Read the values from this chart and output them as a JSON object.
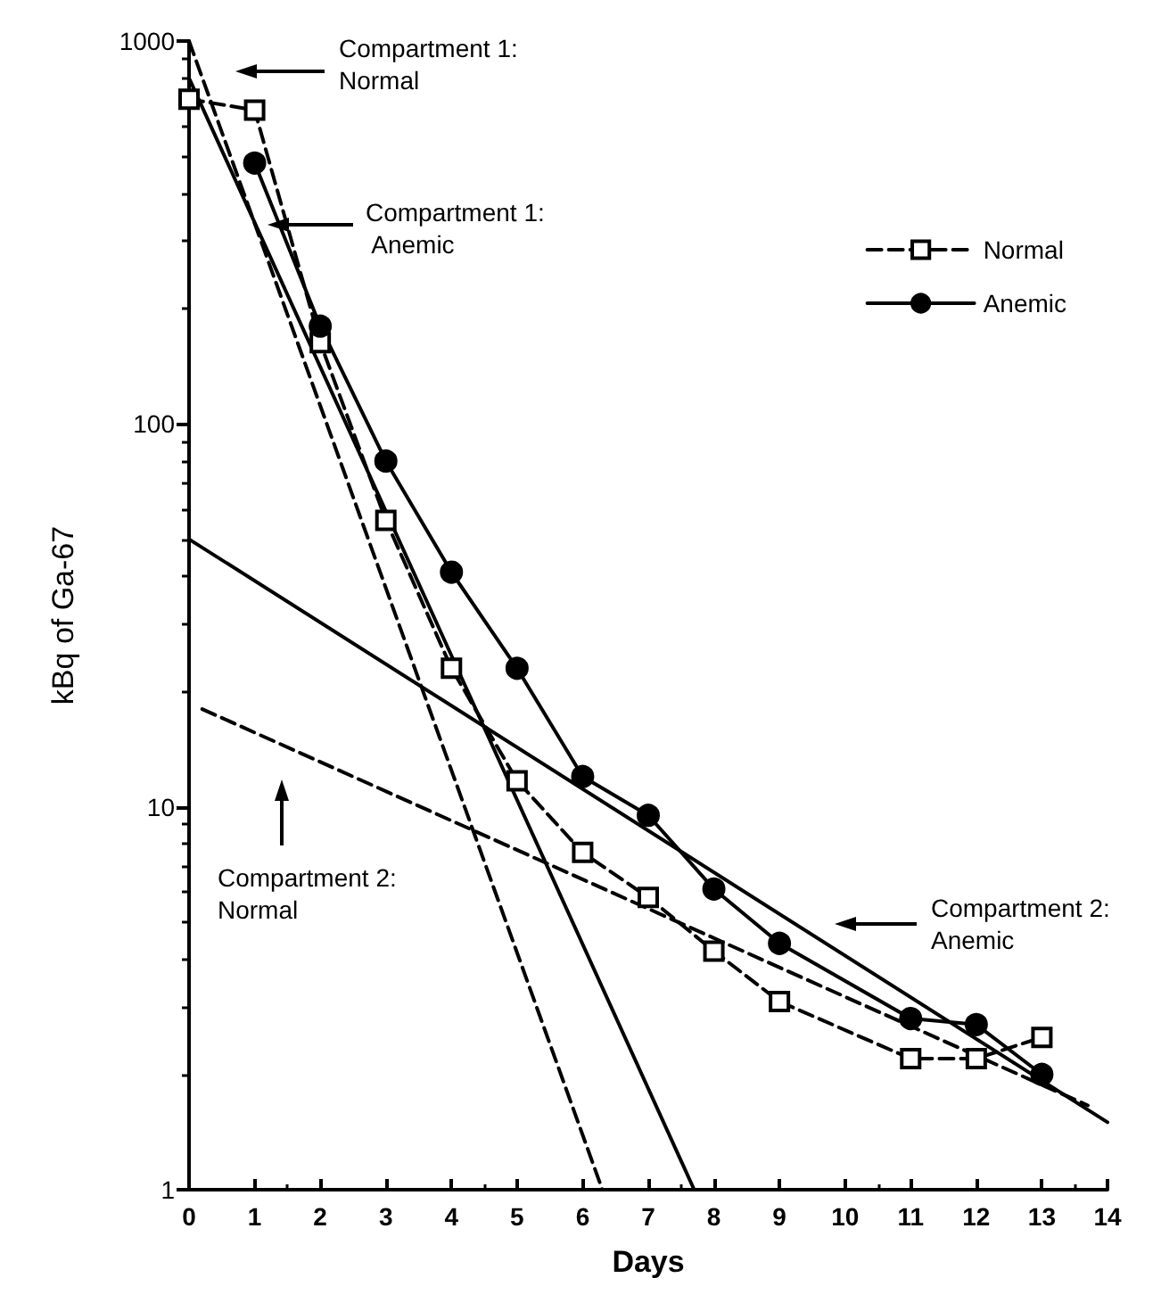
{
  "chart_data": {
    "type": "line",
    "xlabel": "Days",
    "ylabel": "kBq of Ga-67",
    "x": [
      0,
      1,
      2,
      3,
      4,
      5,
      6,
      7,
      8,
      9,
      11,
      12,
      13
    ],
    "series": [
      {
        "name": "Normal",
        "color": "#000000",
        "marker": "square",
        "line_style": "dashed",
        "values": [
          705,
          660,
          163,
          56,
          23,
          11.7,
          7.6,
          5.8,
          4.2,
          3.1,
          2.2,
          2.2,
          2.5
        ]
      },
      {
        "name": "Anemic",
        "color": "#000000",
        "marker": "circle",
        "line_style": "solid",
        "values": [
          null,
          480,
          180,
          80,
          41,
          23,
          12,
          9.5,
          6.1,
          4.4,
          2.8,
          2.7,
          2.0
        ]
      },
      {
        "type": "line",
        "color": "#000000",
        "marker": "none",
        "line_style": "dashed",
        "x": [
          0,
          6.3
        ],
        "values": [
          1000,
          1
        ]
      },
      {
        "type": "line",
        "color": "#000000",
        "marker": "none",
        "line_style": "solid",
        "x": [
          0,
          7.7
        ],
        "values": [
          800,
          1
        ]
      },
      {
        "type": "line",
        "color": "#000000",
        "marker": "none",
        "line_style": "dashed",
        "x": [
          0.2,
          13.7
        ],
        "values": [
          18,
          1.66
        ]
      },
      {
        "type": "line",
        "color": "#000000",
        "marker": "none",
        "line_style": "solid",
        "x": [
          0,
          14
        ],
        "values": [
          50,
          1.5
        ]
      }
    ],
    "xlim": [
      0,
      14
    ],
    "xticks": [
      0,
      1,
      2,
      3,
      4,
      5,
      6,
      7,
      8,
      9,
      10,
      11,
      12,
      13,
      14
    ],
    "ylim": [
      1,
      1000
    ],
    "yticks": [
      1,
      10,
      100,
      1000
    ],
    "log": "y",
    "grid": false,
    "legend": "top right",
    "annotations": [
      "Compartment 1:\nNormal",
      "Compartment 1:\n Anemic",
      "Compartment 2:\nNormal",
      "Compartment 2:\nAnemic"
    ]
  }
}
